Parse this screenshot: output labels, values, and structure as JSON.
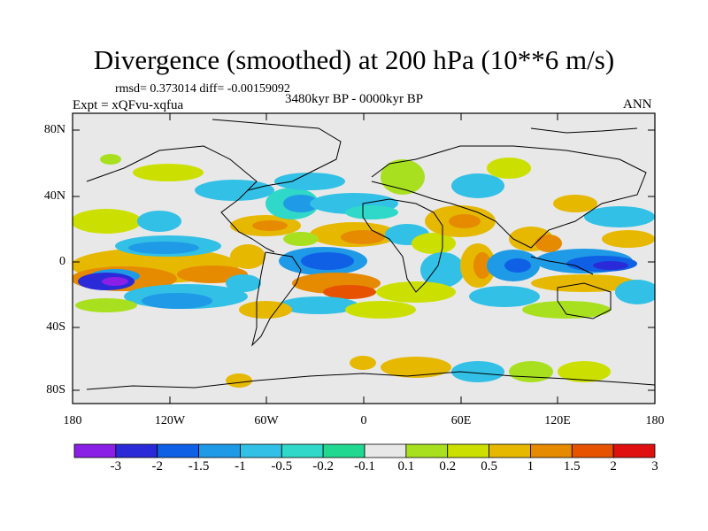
{
  "title": "Divergence (smoothed) at 200 hPa (10**6 m/s)",
  "stats": "rmsd= 0.373014 diff= -0.00159092",
  "period": "3480kyr BP - 0000kyr BP",
  "experiment": "Expt = xQFvu-xqfua",
  "season": "ANN",
  "lat_labels": [
    "80N",
    "40N",
    "0",
    "40S",
    "80S"
  ],
  "lon_labels": [
    "180",
    "120W",
    "60W",
    "0",
    "60E",
    "120E",
    "180"
  ],
  "colorbar": {
    "labels": [
      "-3",
      "-2",
      "-1.5",
      "-1",
      "-0.5",
      "-0.2",
      "-0.1",
      "0.1",
      "0.2",
      "0.5",
      "1",
      "1.5",
      "2",
      "3"
    ],
    "colors": [
      "#8a1fe6",
      "#2a2ad8",
      "#1060e6",
      "#1f9ae6",
      "#32c0e6",
      "#2fd8c8",
      "#20d890",
      "#e8e8e8",
      "#a8e020",
      "#cce000",
      "#e6b800",
      "#e68a00",
      "#e65200",
      "#e01010"
    ]
  },
  "land_color": "#e8e8e8"
}
